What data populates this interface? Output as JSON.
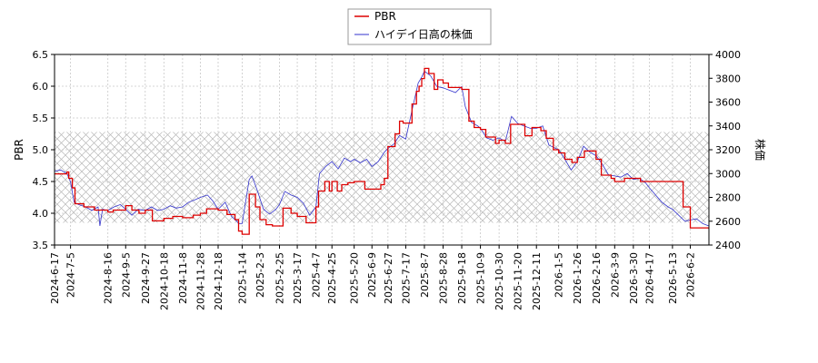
{
  "chart_data": {
    "type": "line",
    "legend": {
      "placement": "top-center",
      "entries": [
        {
          "label": "PBR",
          "color": "#dd0000"
        },
        {
          "label": "ハイデイ日高の株価",
          "color": "#3333cc"
        }
      ]
    },
    "left_axis": {
      "label": "PBR",
      "ylim": [
        3.5,
        6.5
      ],
      "ticks": [
        "3.5",
        "4.0",
        "4.5",
        "5.0",
        "5.5",
        "6.0",
        "6.5"
      ]
    },
    "right_axis": {
      "label": "株価",
      "ylim": [
        2400,
        4000
      ],
      "ticks": [
        "2400",
        "2600",
        "2800",
        "3000",
        "3200",
        "3400",
        "3600",
        "3800",
        "4000"
      ]
    },
    "x_axis": {
      "range": [
        "2024-06-17",
        "2026-06-23"
      ],
      "tick_labels": [
        "2024-6-17",
        "2024-7-5",
        "2024-8-16",
        "2024-9-5",
        "2024-9-27",
        "2024-10-18",
        "2024-11-8",
        "2024-11-28",
        "2024-12-18",
        "2025-1-14",
        "2025-2-3",
        "2025-2-25",
        "2025-3-17",
        "2025-4-7",
        "2025-4-25",
        "2025-5-20",
        "2025-6-9",
        "2025-6-27",
        "2025-7-17",
        "2025-8-7",
        "2025-8-28",
        "2025-9-18",
        "2025-10-9",
        "2025-10-30",
        "2025-11-20",
        "2025-12-11",
        "2026-1-5",
        "2026-1-26",
        "2026-2-16",
        "2026-3-9",
        "2026-3-30",
        "2026-4-17",
        "2026-5-13",
        "2026-6-2"
      ]
    },
    "hatch_band": {
      "axis": "PBR",
      "from": 3.85,
      "to": 5.28
    },
    "grid": true,
    "series": [
      {
        "name": "PBR",
        "axis": "left",
        "color": "#dd0000",
        "step": true,
        "points": [
          [
            "2024-06-17",
            4.62
          ],
          [
            "2024-07-01",
            4.65
          ],
          [
            "2024-07-03",
            4.55
          ],
          [
            "2024-07-07",
            4.4
          ],
          [
            "2024-07-10",
            4.15
          ],
          [
            "2024-07-20",
            4.1
          ],
          [
            "2024-08-01",
            4.05
          ],
          [
            "2024-08-16",
            4.02
          ],
          [
            "2024-08-22",
            4.05
          ],
          [
            "2024-09-05",
            4.12
          ],
          [
            "2024-09-12",
            4.05
          ],
          [
            "2024-09-20",
            4.0
          ],
          [
            "2024-09-27",
            4.05
          ],
          [
            "2024-10-05",
            3.88
          ],
          [
            "2024-10-18",
            3.92
          ],
          [
            "2024-10-28",
            3.95
          ],
          [
            "2024-11-08",
            3.93
          ],
          [
            "2024-11-20",
            3.97
          ],
          [
            "2024-11-28",
            4.0
          ],
          [
            "2024-12-05",
            4.07
          ],
          [
            "2024-12-18",
            4.05
          ],
          [
            "2024-12-28",
            3.98
          ],
          [
            "2025-01-06",
            3.9
          ],
          [
            "2025-01-10",
            3.72
          ],
          [
            "2025-01-14",
            3.67
          ],
          [
            "2025-01-22",
            4.3
          ],
          [
            "2025-01-29",
            4.1
          ],
          [
            "2025-02-03",
            3.9
          ],
          [
            "2025-02-10",
            3.82
          ],
          [
            "2025-02-17",
            3.8
          ],
          [
            "2025-03-01",
            4.08
          ],
          [
            "2025-03-10",
            4.0
          ],
          [
            "2025-03-17",
            3.95
          ],
          [
            "2025-03-27",
            3.85
          ],
          [
            "2025-04-07",
            4.1
          ],
          [
            "2025-04-10",
            4.35
          ],
          [
            "2025-04-17",
            4.5
          ],
          [
            "2025-04-22",
            4.35
          ],
          [
            "2025-04-25",
            4.5
          ],
          [
            "2025-05-01",
            4.35
          ],
          [
            "2025-05-06",
            4.45
          ],
          [
            "2025-05-13",
            4.48
          ],
          [
            "2025-05-20",
            4.5
          ],
          [
            "2025-06-01",
            4.38
          ],
          [
            "2025-06-09",
            4.38
          ],
          [
            "2025-06-19",
            4.45
          ],
          [
            "2025-06-23",
            4.55
          ],
          [
            "2025-06-27",
            5.05
          ],
          [
            "2025-07-05",
            5.25
          ],
          [
            "2025-07-10",
            5.45
          ],
          [
            "2025-07-14",
            5.42
          ],
          [
            "2025-07-24",
            5.72
          ],
          [
            "2025-07-29",
            5.92
          ],
          [
            "2025-08-01",
            6.0
          ],
          [
            "2025-08-04",
            6.12
          ],
          [
            "2025-08-07",
            6.28
          ],
          [
            "2025-08-12",
            6.2
          ],
          [
            "2025-08-18",
            5.95
          ],
          [
            "2025-08-22",
            6.1
          ],
          [
            "2025-08-28",
            6.05
          ],
          [
            "2025-09-03",
            5.98
          ],
          [
            "2025-09-18",
            5.95
          ],
          [
            "2025-09-26",
            5.45
          ],
          [
            "2025-10-02",
            5.35
          ],
          [
            "2025-10-09",
            5.32
          ],
          [
            "2025-10-15",
            5.2
          ],
          [
            "2025-10-22",
            5.2
          ],
          [
            "2025-10-26",
            5.1
          ],
          [
            "2025-10-30",
            5.15
          ],
          [
            "2025-11-06",
            5.1
          ],
          [
            "2025-11-12",
            5.4
          ],
          [
            "2025-11-20",
            5.4
          ],
          [
            "2025-11-28",
            5.22
          ],
          [
            "2025-12-06",
            5.35
          ],
          [
            "2025-12-16",
            5.3
          ],
          [
            "2025-12-22",
            5.18
          ],
          [
            "2025-12-30",
            5.0
          ],
          [
            "2026-01-05",
            4.95
          ],
          [
            "2026-01-12",
            4.85
          ],
          [
            "2026-01-20",
            4.8
          ],
          [
            "2026-01-26",
            4.88
          ],
          [
            "2026-02-03",
            4.98
          ],
          [
            "2026-02-16",
            4.85
          ],
          [
            "2026-02-22",
            4.6
          ],
          [
            "2026-03-05",
            4.55
          ],
          [
            "2026-03-09",
            4.5
          ],
          [
            "2026-03-20",
            4.55
          ],
          [
            "2026-03-30",
            4.55
          ],
          [
            "2026-04-07",
            4.5
          ],
          [
            "2026-05-13",
            4.5
          ],
          [
            "2026-05-25",
            4.1
          ],
          [
            "2026-06-02",
            3.77
          ],
          [
            "2026-06-23",
            3.75
          ]
        ]
      },
      {
        "name": "ハイデイ日高の株価",
        "axis": "right",
        "color": "#3333cc",
        "step": false,
        "points": [
          [
            "2024-06-17",
            3020
          ],
          [
            "2024-06-24",
            3030
          ],
          [
            "2024-07-01",
            3000
          ],
          [
            "2024-07-05",
            2930
          ],
          [
            "2024-07-09",
            2760
          ],
          [
            "2024-07-14",
            2740
          ],
          [
            "2024-07-22",
            2720
          ],
          [
            "2024-07-29",
            2690
          ],
          [
            "2024-08-05",
            2720
          ],
          [
            "2024-08-07",
            2560
          ],
          [
            "2024-08-10",
            2700
          ],
          [
            "2024-08-16",
            2690
          ],
          [
            "2024-08-23",
            2720
          ],
          [
            "2024-08-30",
            2740
          ],
          [
            "2024-09-05",
            2700
          ],
          [
            "2024-09-12",
            2650
          ],
          [
            "2024-09-19",
            2700
          ],
          [
            "2024-09-27",
            2690
          ],
          [
            "2024-10-04",
            2720
          ],
          [
            "2024-10-11",
            2690
          ],
          [
            "2024-10-18",
            2700
          ],
          [
            "2024-10-25",
            2730
          ],
          [
            "2024-11-01",
            2710
          ],
          [
            "2024-11-08",
            2720
          ],
          [
            "2024-11-15",
            2760
          ],
          [
            "2024-11-22",
            2780
          ],
          [
            "2024-11-28",
            2800
          ],
          [
            "2024-12-06",
            2820
          ],
          [
            "2024-12-12",
            2770
          ],
          [
            "2024-12-18",
            2700
          ],
          [
            "2024-12-26",
            2760
          ],
          [
            "2025-01-02",
            2640
          ],
          [
            "2025-01-08",
            2600
          ],
          [
            "2025-01-10",
            2580
          ],
          [
            "2025-01-14",
            2580
          ],
          [
            "2025-01-22",
            2950
          ],
          [
            "2025-01-25",
            2980
          ],
          [
            "2025-01-31",
            2860
          ],
          [
            "2025-02-07",
            2700
          ],
          [
            "2025-02-14",
            2660
          ],
          [
            "2025-02-21",
            2700
          ],
          [
            "2025-02-25",
            2740
          ],
          [
            "2025-03-03",
            2850
          ],
          [
            "2025-03-10",
            2820
          ],
          [
            "2025-03-17",
            2800
          ],
          [
            "2025-03-24",
            2750
          ],
          [
            "2025-03-31",
            2650
          ],
          [
            "2025-04-07",
            2720
          ],
          [
            "2025-04-11",
            3000
          ],
          [
            "2025-04-18",
            3060
          ],
          [
            "2025-04-25",
            3100
          ],
          [
            "2025-05-02",
            3040
          ],
          [
            "2025-05-09",
            3130
          ],
          [
            "2025-05-16",
            3100
          ],
          [
            "2025-05-20",
            3120
          ],
          [
            "2025-05-27",
            3090
          ],
          [
            "2025-06-03",
            3120
          ],
          [
            "2025-06-09",
            3060
          ],
          [
            "2025-06-16",
            3100
          ],
          [
            "2025-06-23",
            3180
          ],
          [
            "2025-06-27",
            3210
          ],
          [
            "2025-07-04",
            3250
          ],
          [
            "2025-07-10",
            3320
          ],
          [
            "2025-07-17",
            3290
          ],
          [
            "2025-07-24",
            3530
          ],
          [
            "2025-07-31",
            3760
          ],
          [
            "2025-08-04",
            3810
          ],
          [
            "2025-08-07",
            3860
          ],
          [
            "2025-08-14",
            3820
          ],
          [
            "2025-08-21",
            3730
          ],
          [
            "2025-08-28",
            3720
          ],
          [
            "2025-09-04",
            3700
          ],
          [
            "2025-09-11",
            3680
          ],
          [
            "2025-09-18",
            3730
          ],
          [
            "2025-09-22",
            3560
          ],
          [
            "2025-09-29",
            3430
          ],
          [
            "2025-10-06",
            3400
          ],
          [
            "2025-10-09",
            3380
          ],
          [
            "2025-10-16",
            3300
          ],
          [
            "2025-10-23",
            3280
          ],
          [
            "2025-10-30",
            3300
          ],
          [
            "2025-11-06",
            3270
          ],
          [
            "2025-11-13",
            3480
          ],
          [
            "2025-11-20",
            3420
          ],
          [
            "2025-11-27",
            3400
          ],
          [
            "2025-12-04",
            3380
          ],
          [
            "2025-12-11",
            3380
          ],
          [
            "2025-12-18",
            3400
          ],
          [
            "2025-12-25",
            3240
          ],
          [
            "2026-01-05",
            3200
          ],
          [
            "2026-01-12",
            3120
          ],
          [
            "2026-01-19",
            3030
          ],
          [
            "2026-01-26",
            3100
          ],
          [
            "2026-02-02",
            3230
          ],
          [
            "2026-02-09",
            3180
          ],
          [
            "2026-02-16",
            3150
          ],
          [
            "2026-02-23",
            3080
          ],
          [
            "2026-03-02",
            2990
          ],
          [
            "2026-03-09",
            2980
          ],
          [
            "2026-03-16",
            2970
          ],
          [
            "2026-03-23",
            3000
          ],
          [
            "2026-03-30",
            2950
          ],
          [
            "2026-04-06",
            2960
          ],
          [
            "2026-04-13",
            2920
          ],
          [
            "2026-04-17",
            2880
          ],
          [
            "2026-04-24",
            2820
          ],
          [
            "2026-05-01",
            2760
          ],
          [
            "2026-05-08",
            2720
          ],
          [
            "2026-05-13",
            2700
          ],
          [
            "2026-05-20",
            2650
          ],
          [
            "2026-05-27",
            2600
          ],
          [
            "2026-06-02",
            2610
          ],
          [
            "2026-06-09",
            2620
          ],
          [
            "2026-06-16",
            2580
          ],
          [
            "2026-06-23",
            2560
          ]
        ]
      }
    ]
  }
}
